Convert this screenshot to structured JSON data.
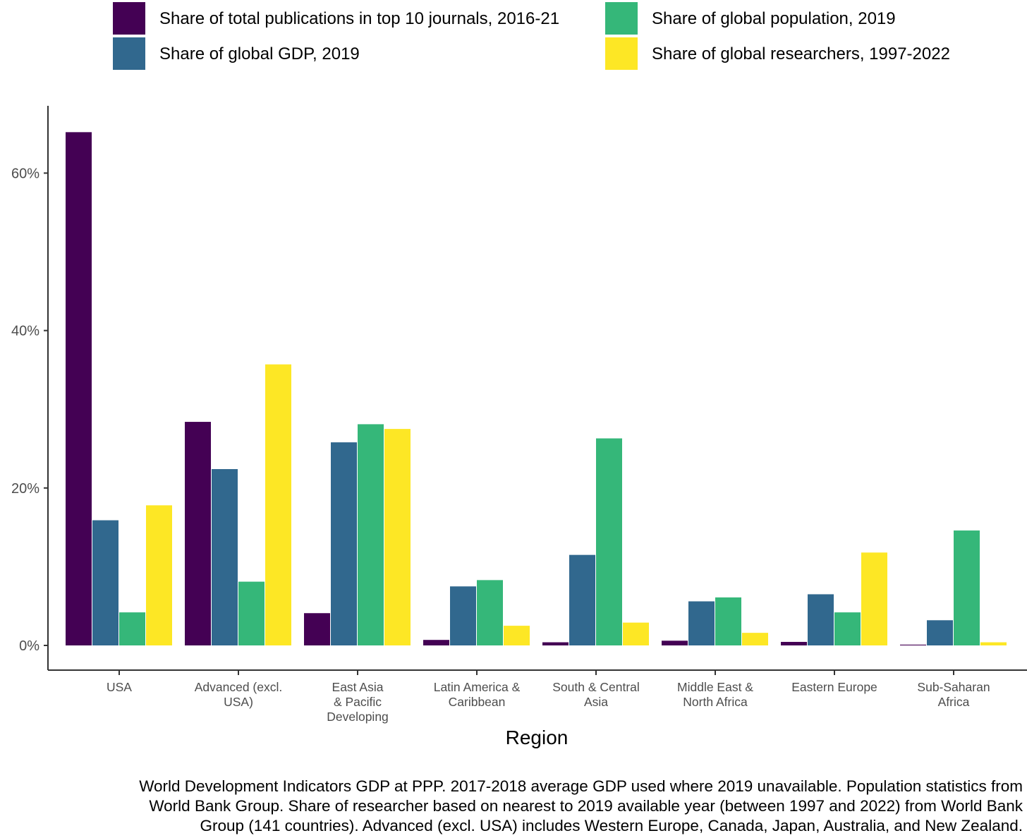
{
  "chart_data": {
    "type": "bar",
    "title": "",
    "xlabel": "Region",
    "ylabel": "",
    "ylim": [
      0,
      68
    ],
    "y_ticks": [
      "0%",
      "20%",
      "40%",
      "60%"
    ],
    "y_tick_values": [
      0,
      20,
      40,
      60
    ],
    "grid": false,
    "legend_position": "top",
    "categories": [
      [
        "USA"
      ],
      [
        "Advanced (excl.",
        "USA)"
      ],
      [
        "East Asia",
        "& Pacific",
        "Developing"
      ],
      [
        "Latin America &",
        "Caribbean"
      ],
      [
        "South & Central",
        "Asia"
      ],
      [
        "Middle East &",
        "North Africa"
      ],
      [
        "Eastern Europe"
      ],
      [
        "Sub-Saharan",
        "Africa"
      ]
    ],
    "series": [
      {
        "name": "Share of total publications in top 10 journals, 2016-21",
        "color": "#440154",
        "values": [
          65.2,
          28.4,
          4.1,
          0.7,
          0.4,
          0.6,
          0.45,
          0.1
        ]
      },
      {
        "name": "Share of global GDP, 2019",
        "color": "#31688E",
        "values": [
          15.9,
          22.4,
          25.8,
          7.5,
          11.5,
          5.6,
          6.5,
          3.2
        ]
      },
      {
        "name": "Share of global population, 2019",
        "color": "#35B779",
        "values": [
          4.2,
          8.1,
          28.1,
          8.3,
          26.3,
          6.1,
          4.2,
          14.6
        ]
      },
      {
        "name": "Share of global researchers, 1997-2022",
        "color": "#FDE725",
        "values": [
          17.8,
          35.7,
          27.5,
          2.5,
          2.9,
          1.6,
          11.8,
          0.4
        ]
      }
    ]
  },
  "caption": [
    "World Development Indicators GDP at PPP. 2017-2018 average GDP used where 2019 unavailable. Population statistics from",
    "World Bank Group. Share of researcher based on nearest to 2019 available year (between 1997 and 2022) from World Bank",
    "Group (141 countries). Advanced (excl. USA) includes Western Europe, Canada, Japan, Australia, and New Zealand."
  ]
}
